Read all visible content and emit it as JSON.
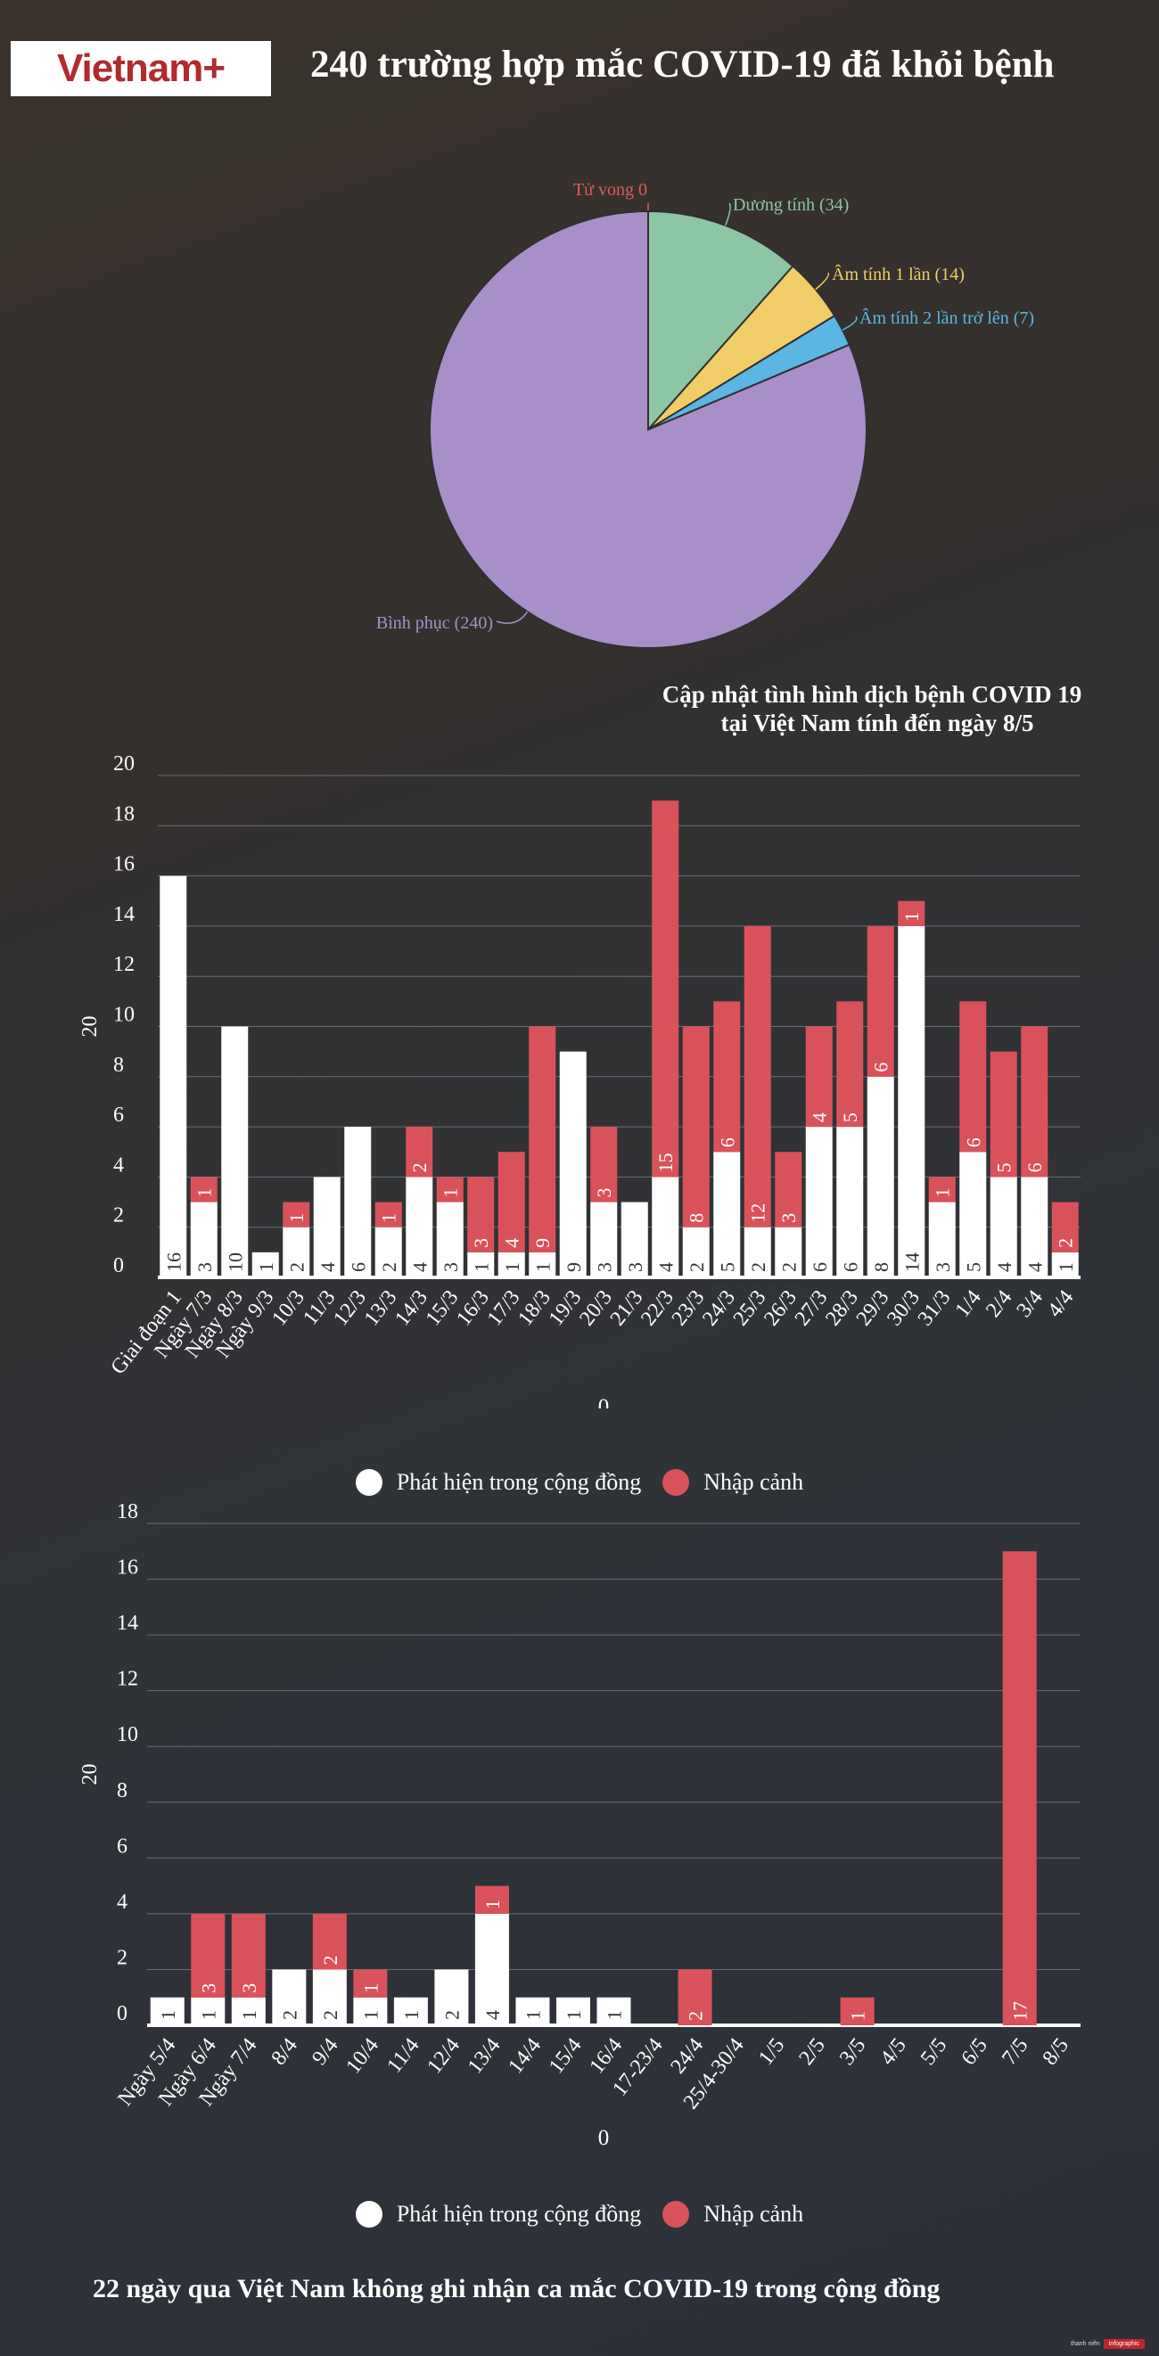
{
  "brand": {
    "logo_text": "Vietnam+",
    "mini_left": "thanh niên",
    "mini_right": "infographic"
  },
  "title": "240 trường hợp mắc COVID-19 đã khỏi bệnh",
  "colors": {
    "community": "#ffffff",
    "import": "#d9525a",
    "recovered": "#a98fc8",
    "positive": "#8cc6a5",
    "neg1": "#f1cd67",
    "neg2": "#5bb6e4",
    "death": "#e15a5a"
  },
  "pie": {
    "type": "pie",
    "slices": [
      {
        "label": "Tử vong 0",
        "value": 0,
        "color": "#e15a5a"
      },
      {
        "label": "Dương tính (34)",
        "value": 34,
        "color": "#8cc6a5"
      },
      {
        "label": "Âm tính 1 lần (14)",
        "value": 14,
        "color": "#f1cd67"
      },
      {
        "label": "Âm tính 2 lần trở lên (7)",
        "value": 7,
        "color": "#5bb6e4"
      },
      {
        "label": "Bình phục (240)",
        "value": 240,
        "color": "#a98fc8"
      }
    ]
  },
  "subtitle": {
    "line1": "Cập nhật tình hình dịch bệnh COVID 19",
    "line2": "tại Việt Nam tính đến ngày 8/5"
  },
  "chart_data": [
    {
      "type": "bar",
      "stacked": true,
      "categories": [
        "Giai đoạn 1",
        "Ngày 7/3",
        "Ngày 8/3",
        "Ngày 9/3",
        "10/3",
        "11/3",
        "12/3",
        "13/3",
        "14/3",
        "15/3",
        "16/3",
        "17/3",
        "18/3",
        "19/3",
        "20/3",
        "21/3",
        "22/3",
        "23/3",
        "24/3",
        "25/3",
        "26/3",
        "27/3",
        "28/3",
        "29/3",
        "30/3",
        "31/3",
        "1/4",
        "2/4",
        "3/4",
        "4/4"
      ],
      "series": [
        {
          "name": "Phát hiện trong cộng đồng",
          "values": [
            16,
            3,
            10,
            1,
            2,
            4,
            6,
            2,
            4,
            3,
            1,
            1,
            1,
            9,
            3,
            3,
            4,
            2,
            5,
            2,
            2,
            6,
            6,
            8,
            14,
            3,
            5,
            4,
            4,
            1
          ]
        },
        {
          "name": "Nhập cảnh",
          "values": [
            0,
            1,
            0,
            0,
            1,
            0,
            0,
            1,
            2,
            1,
            3,
            4,
            9,
            0,
            3,
            0,
            15,
            8,
            6,
            12,
            3,
            4,
            5,
            6,
            1,
            1,
            6,
            5,
            6,
            2
          ]
        }
      ],
      "ylabel": "20",
      "xlabel": "0",
      "ylim": [
        0,
        20
      ],
      "yticks": [
        0,
        2,
        4,
        6,
        8,
        10,
        12,
        14,
        16,
        18,
        20
      ],
      "legend": [
        {
          "label": "Phát hiện trong cộng đồng"
        },
        {
          "label": "Nhập cảnh"
        }
      ]
    },
    {
      "type": "bar",
      "stacked": true,
      "categories": [
        "Ngày 5/4",
        "Ngày 6/4",
        "Ngày 7/4",
        "8/4",
        "9/4",
        "10/4",
        "11/4",
        "12/4",
        "13/4",
        "14/4",
        "15/4",
        "16/4",
        "17-23/4",
        "24/4",
        "25/4-30/4",
        "1/5",
        "2/5",
        "3/5",
        "4/5",
        "5/5",
        "6/5",
        "7/5",
        "8/5"
      ],
      "series": [
        {
          "name": "Phát hiện trong cộng đồng",
          "values": [
            1,
            1,
            1,
            2,
            2,
            1,
            1,
            2,
            4,
            1,
            1,
            1,
            0,
            0,
            0,
            0,
            0,
            0,
            0,
            0,
            0,
            0,
            0
          ]
        },
        {
          "name": "Nhập cảnh",
          "values": [
            0,
            3,
            3,
            0,
            2,
            1,
            0,
            0,
            1,
            0,
            0,
            0,
            0,
            2,
            0,
            0,
            0,
            1,
            0,
            0,
            0,
            17,
            0
          ]
        }
      ],
      "ylabel": "20",
      "xlabel": "0",
      "ylim": [
        0,
        18
      ],
      "yticks": [
        0,
        2,
        4,
        6,
        8,
        10,
        12,
        14,
        16,
        18
      ],
      "legend": [
        {
          "label": "Phát hiện trong cộng đồng"
        },
        {
          "label": "Nhập cảnh"
        }
      ]
    }
  ],
  "footer": "22 ngày qua Việt Nam không ghi nhận ca mắc COVID-19 trong cộng đồng"
}
